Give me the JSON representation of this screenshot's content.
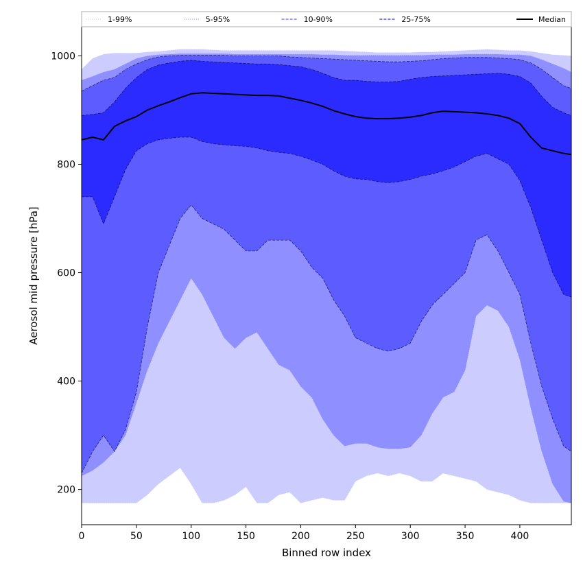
{
  "chart_data": {
    "type": "area",
    "xlabel": "Binned row index",
    "ylabel": "Aerosol mid pressure [hPa]",
    "xlim": [
      0,
      447
    ],
    "ylim": [
      135,
      1055
    ],
    "x_ticks": [
      0,
      50,
      100,
      150,
      200,
      250,
      300,
      350,
      400
    ],
    "y_ticks": [
      200,
      400,
      600,
      800,
      1000
    ],
    "legend_position": "top",
    "legend": [
      {
        "label": "1-99%",
        "color": "#ccccff",
        "style": "dotted"
      },
      {
        "label": "5-95%",
        "color": "#8f8fff",
        "style": "dotted"
      },
      {
        "label": "10-90%",
        "color": "#5c5cff",
        "style": "dashed"
      },
      {
        "label": "25-75%",
        "color": "#2b2bff",
        "style": "dashed"
      },
      {
        "label": "Median",
        "color": "#000000",
        "style": "solid"
      }
    ],
    "x": [
      0,
      10,
      20,
      30,
      40,
      50,
      60,
      70,
      80,
      90,
      100,
      110,
      120,
      130,
      140,
      150,
      160,
      170,
      180,
      190,
      200,
      210,
      220,
      230,
      240,
      250,
      260,
      270,
      280,
      290,
      300,
      310,
      320,
      330,
      340,
      350,
      360,
      370,
      380,
      390,
      400,
      410,
      420,
      430,
      440,
      447
    ],
    "bands": [
      {
        "name": "1-99%",
        "color": "#ccccff",
        "lower": [
          175,
          175,
          175,
          175,
          175,
          175,
          190,
          210,
          225,
          240,
          210,
          175,
          175,
          180,
          190,
          205,
          175,
          175,
          190,
          195,
          175,
          180,
          185,
          180,
          180,
          215,
          225,
          230,
          225,
          230,
          225,
          215,
          215,
          230,
          225,
          220,
          215,
          200,
          195,
          190,
          180,
          175,
          175,
          175,
          175,
          175
        ],
        "upper": [
          975,
          995,
          1003,
          1005,
          1005,
          1005,
          1007,
          1008,
          1010,
          1012,
          1012,
          1012,
          1011,
          1010,
          1010,
          1010,
          1010,
          1010,
          1010,
          1010,
          1010,
          1010,
          1010,
          1010,
          1009,
          1008,
          1007,
          1006,
          1006,
          1006,
          1006,
          1007,
          1007,
          1008,
          1009,
          1010,
          1011,
          1012,
          1011,
          1010,
          1010,
          1008,
          1005,
          1002,
          1001,
          1000
        ]
      },
      {
        "name": "5-95%",
        "color": "#8f8fff",
        "lower": [
          225,
          235,
          250,
          270,
          300,
          360,
          420,
          470,
          510,
          550,
          590,
          560,
          520,
          480,
          460,
          480,
          490,
          460,
          430,
          420,
          390,
          370,
          330,
          300,
          280,
          285,
          285,
          278,
          275,
          275,
          278,
          300,
          340,
          370,
          380,
          420,
          520,
          540,
          530,
          500,
          440,
          350,
          270,
          210,
          178,
          175
        ],
        "upper": [
          955,
          962,
          970,
          975,
          985,
          995,
          1000,
          1002,
          1003,
          1004,
          1004,
          1004,
          1004,
          1004,
          1003,
          1003,
          1003,
          1003,
          1003,
          1003,
          1003,
          1003,
          1002,
          1002,
          1001,
          1001,
          1001,
          1001,
          1001,
          1001,
          1001,
          1001,
          1002,
          1002,
          1002,
          1003,
          1003,
          1003,
          1003,
          1002,
          1002,
          1000,
          993,
          985,
          977,
          970
        ]
      },
      {
        "name": "10-90%",
        "color": "#5c5cff",
        "lower": [
          230,
          270,
          300,
          270,
          310,
          380,
          500,
          600,
          650,
          700,
          725,
          700,
          690,
          680,
          660,
          640,
          640,
          660,
          660,
          660,
          640,
          610,
          590,
          550,
          520,
          480,
          470,
          460,
          455,
          460,
          470,
          510,
          540,
          560,
          580,
          600,
          660,
          670,
          640,
          600,
          560,
          470,
          390,
          330,
          280,
          270
        ],
        "upper": [
          935,
          945,
          955,
          960,
          975,
          985,
          993,
          998,
          1000,
          1001,
          1001,
          1001,
          1001,
          1001,
          1000,
          1000,
          1000,
          1000,
          1000,
          998,
          997,
          996,
          995,
          994,
          993,
          992,
          991,
          990,
          989,
          989,
          990,
          991,
          993,
          995,
          996,
          997,
          997,
          997,
          996,
          995,
          993,
          987,
          975,
          960,
          945,
          940
        ]
      },
      {
        "name": "25-75%",
        "color": "#2b2bff",
        "lower": [
          740,
          740,
          690,
          740,
          790,
          825,
          838,
          845,
          848,
          850,
          850,
          842,
          838,
          836,
          834,
          833,
          830,
          825,
          822,
          820,
          815,
          808,
          800,
          788,
          778,
          773,
          772,
          768,
          766,
          768,
          772,
          778,
          782,
          788,
          795,
          805,
          815,
          820,
          810,
          800,
          770,
          720,
          660,
          600,
          560,
          555
        ],
        "upper": [
          890,
          892,
          895,
          915,
          940,
          960,
          975,
          983,
          987,
          990,
          992,
          990,
          989,
          988,
          987,
          986,
          985,
          985,
          984,
          982,
          980,
          975,
          968,
          960,
          955,
          955,
          953,
          952,
          952,
          953,
          957,
          960,
          962,
          963,
          964,
          965,
          966,
          967,
          968,
          966,
          962,
          950,
          925,
          905,
          895,
          890
        ]
      }
    ],
    "median": [
      845,
      850,
      845,
      870,
      880,
      888,
      900,
      908,
      915,
      923,
      930,
      932,
      931,
      930,
      929,
      928,
      927,
      927,
      926,
      922,
      918,
      913,
      907,
      899,
      893,
      888,
      885,
      884,
      884,
      885,
      887,
      890,
      895,
      898,
      897,
      896,
      895,
      893,
      890,
      885,
      875,
      850,
      830,
      825,
      820,
      818
    ],
    "colors": {
      "axis": "#000000",
      "legend_border": "#aaaaaa"
    }
  }
}
